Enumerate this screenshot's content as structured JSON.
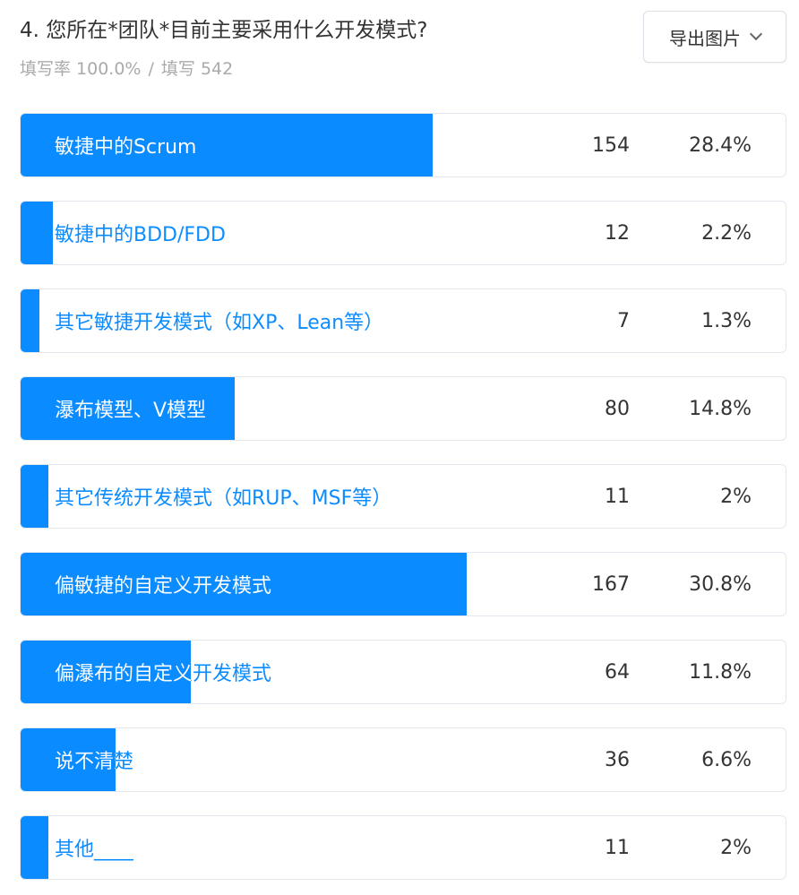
{
  "question": {
    "title": "4. 您所在*团队*目前主要采用什么开发模式?",
    "fill_rate_label": "填写率 100.0%",
    "separator": "/",
    "fill_count_label": "填写 542"
  },
  "toolbar": {
    "export_label": "导出图片"
  },
  "colors": {
    "bar": "#0a8bff",
    "label_on_bar": "#ffffff",
    "label_off_bar": "#0a8bff"
  },
  "chart_data": {
    "type": "bar",
    "orientation": "horizontal",
    "categories": [
      "敏捷中的Scrum",
      "敏捷中的BDD/FDD",
      "其它敏捷开发模式（如XP、Lean等）",
      "瀑布模型、V模型",
      "其它传统开发模式（如RUP、MSF等）",
      "偏敏捷的自定义开发模式",
      "偏瀑布的自定义开发模式",
      "说不清楚",
      "其他____"
    ],
    "counts": [
      "154",
      "12",
      "7",
      "80",
      "11",
      "167",
      "64",
      "36",
      "11"
    ],
    "percent_labels": [
      "28.4%",
      "2.2%",
      "1.3%",
      "14.8%",
      "2%",
      "30.8%",
      "11.8%",
      "6.6%",
      "2%"
    ],
    "bar_fraction_of_max": [
      0.537,
      0.042,
      0.024,
      0.279,
      0.036,
      0.582,
      0.222,
      0.124,
      0.036
    ]
  }
}
